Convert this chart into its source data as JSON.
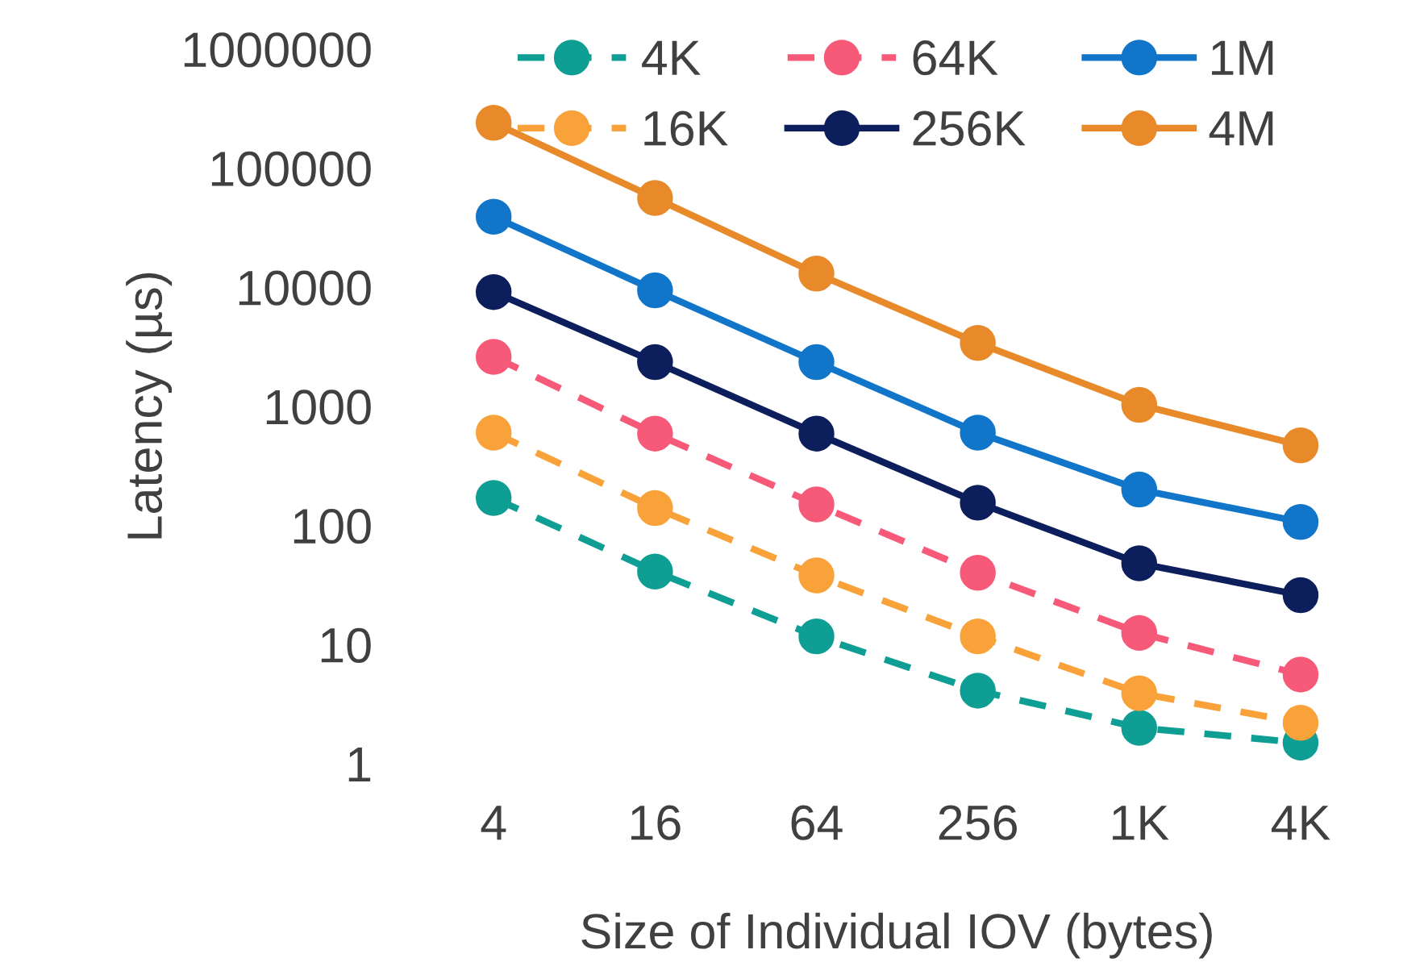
{
  "chart_data": {
    "type": "line",
    "xlabel": "Size of Individual IOV (bytes)",
    "ylabel": "Latency (µs)",
    "categories": [
      "4",
      "16",
      "64",
      "256",
      "1K",
      "4K"
    ],
    "log": "y",
    "ylim": [
      1,
      1000000
    ],
    "yticks": [
      1,
      10,
      100,
      1000,
      10000,
      100000,
      1000000
    ],
    "grid": false,
    "legend": "top",
    "marker": "circle",
    "series": [
      {
        "name": "4K",
        "color": "#0f9e94",
        "line_style": "dashed",
        "values": [
          170,
          41,
          11.7,
          4.1,
          2.0,
          1.5
        ]
      },
      {
        "name": "16K",
        "color": "#f9a23a",
        "line_style": "dashed",
        "values": [
          600,
          140,
          38,
          11.7,
          3.9,
          2.2
        ]
      },
      {
        "name": "64K",
        "color": "#f65a78",
        "line_style": "dashed",
        "values": [
          2600,
          590,
          150,
          40,
          12.5,
          5.6
        ]
      },
      {
        "name": "256K",
        "color": "#0c1e5b",
        "line_style": "solid",
        "values": [
          9100,
          2350,
          590,
          155,
          48,
          26
        ]
      },
      {
        "name": "1M",
        "color": "#1176c9",
        "line_style": "solid",
        "values": [
          39000,
          9400,
          2350,
          600,
          200,
          107
        ]
      },
      {
        "name": "4M",
        "color": "#e8892a",
        "line_style": "solid",
        "values": [
          240000,
          56000,
          13000,
          3400,
          1030,
          470
        ]
      }
    ]
  }
}
